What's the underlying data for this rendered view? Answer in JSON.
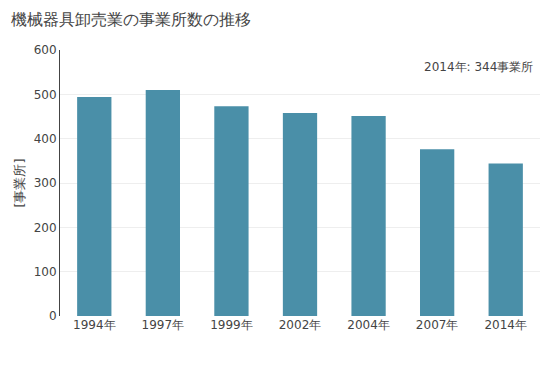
{
  "chart_data": {
    "type": "bar",
    "title": "機械器具卸売業の事業所数の推移",
    "ylabel": "[事業所]",
    "annotation": "2014年: 344事業所",
    "categories": [
      "1994年",
      "1997年",
      "1999年",
      "2002年",
      "2004年",
      "2007年",
      "2014年"
    ],
    "values": [
      494,
      510,
      473,
      458,
      451,
      376,
      344
    ],
    "color": "#4a8fa8",
    "ylim": [
      0,
      600
    ],
    "yticks": [
      0,
      100,
      200,
      300,
      400,
      500,
      600
    ],
    "grid": true
  }
}
